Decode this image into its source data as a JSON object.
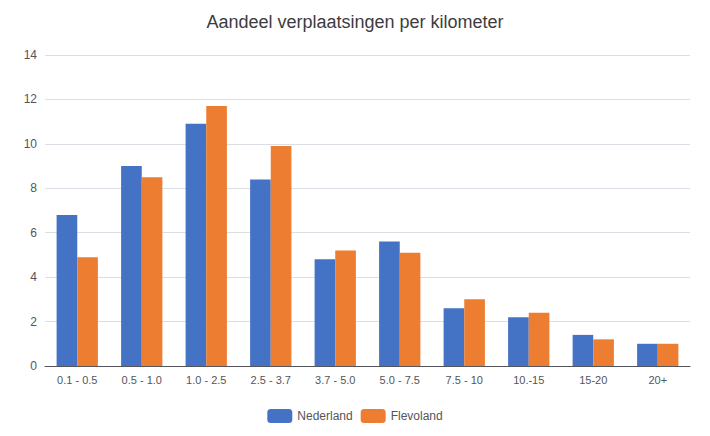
{
  "chart_data": {
    "type": "bar",
    "title": "Aandeel verplaatsingen per kilometer",
    "categories": [
      "0.1 - 0.5",
      "0.5 - 1.0",
      "1.0 - 2.5",
      "2.5 - 3.7",
      "3.7 - 5.0",
      "5.0 - 7.5",
      "7.5 - 10",
      "10.-15",
      "15-20",
      "20+"
    ],
    "series": [
      {
        "name": "Nederland",
        "color": "#4472C4",
        "values": [
          6.8,
          9.0,
          10.9,
          8.4,
          4.8,
          5.6,
          2.6,
          2.2,
          1.4,
          1.0
        ]
      },
      {
        "name": "Flevoland",
        "color": "#ED7D31",
        "values": [
          4.9,
          8.5,
          11.7,
          9.9,
          5.2,
          5.1,
          3.0,
          2.4,
          1.2,
          1.0
        ]
      }
    ],
    "ylim": [
      0,
      14
    ],
    "yticks": [
      0,
      2,
      4,
      6,
      8,
      10,
      12,
      14
    ],
    "grid": true,
    "legend": "bottom"
  }
}
